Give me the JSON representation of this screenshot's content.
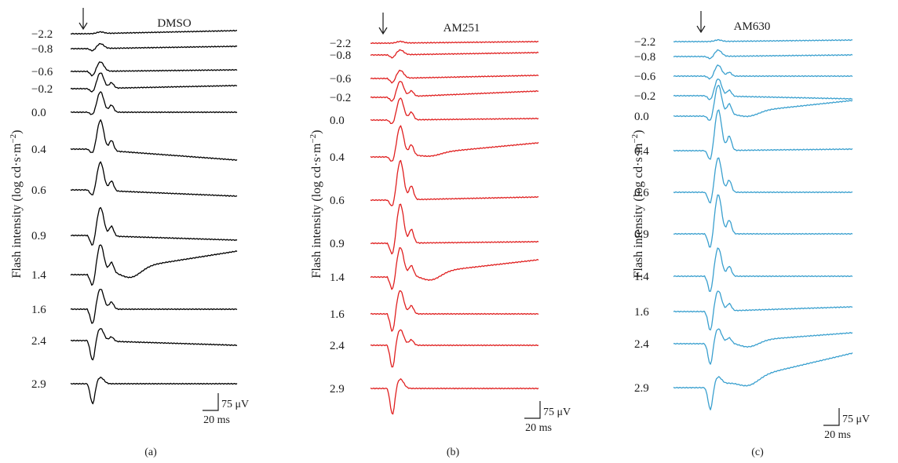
{
  "chart_data": [
    {
      "type": "line",
      "panel_label": "(a)",
      "title": "DMSO",
      "ylabel": "Flash intensity (log cd·s·m−2)",
      "ylabel_unit_exponent": "−2",
      "ylabel_prefix": "Flash intensity (log cd·s·m",
      "color": "#000000",
      "scale_bar": {
        "voltage": "75 μV",
        "time": "20 ms"
      },
      "flash_marker": "↓",
      "traces": [
        {
          "intensity": "−2.2",
          "a_wave": 0,
          "b_wave": 2,
          "trough": 0,
          "drift": 4
        },
        {
          "intensity": "−0.8",
          "a_wave": 3,
          "b_wave": 6,
          "trough": 0,
          "drift": 3
        },
        {
          "intensity": "−0.6",
          "a_wave": 6,
          "b_wave": 12,
          "trough": 0,
          "drift": 2
        },
        {
          "intensity": "−0.2",
          "a_wave": 5,
          "b_wave": 20,
          "trough": 0,
          "drift": 4
        },
        {
          "intensity": "0.0",
          "a_wave": 4,
          "b_wave": 26,
          "trough": 0,
          "drift": 0
        },
        {
          "intensity": "0.4",
          "a_wave": 6,
          "b_wave": 38,
          "trough": 0,
          "drift": -14
        },
        {
          "intensity": "0.6",
          "a_wave": 8,
          "b_wave": 36,
          "trough": 0,
          "drift": -8
        },
        {
          "intensity": "0.9",
          "a_wave": 14,
          "b_wave": 36,
          "trough": 0,
          "drift": -6
        },
        {
          "intensity": "1.4",
          "a_wave": 16,
          "b_wave": 36,
          "trough": 12,
          "drift": 30
        },
        {
          "intensity": "1.6",
          "a_wave": 20,
          "b_wave": 26,
          "trough": 0,
          "drift": 0
        },
        {
          "intensity": "2.4",
          "a_wave": 26,
          "b_wave": 16,
          "trough": 0,
          "drift": -6
        },
        {
          "intensity": "2.9",
          "a_wave": 26,
          "b_wave": 8,
          "trough": 0,
          "drift": 0
        }
      ]
    },
    {
      "type": "line",
      "panel_label": "(b)",
      "title": "AM251",
      "ylabel": "Flash intensity (log cd·s·m−2)",
      "ylabel_unit_exponent": "−2",
      "ylabel_prefix": "Flash intensity (log cd·s·m",
      "color": "#e02020",
      "scale_bar": {
        "voltage": "75 μV",
        "time": "20 ms"
      },
      "flash_marker": "↓",
      "traces": [
        {
          "intensity": "−2.2",
          "a_wave": 0,
          "b_wave": 2,
          "trough": 0,
          "drift": 2
        },
        {
          "intensity": "−0.8",
          "a_wave": 4,
          "b_wave": 6,
          "trough": 0,
          "drift": 3
        },
        {
          "intensity": "−0.6",
          "a_wave": 6,
          "b_wave": 10,
          "trough": 0,
          "drift": 4
        },
        {
          "intensity": "−0.2",
          "a_wave": 6,
          "b_wave": 20,
          "trough": 0,
          "drift": 8
        },
        {
          "intensity": "0.0",
          "a_wave": 6,
          "b_wave": 28,
          "trough": 0,
          "drift": 2
        },
        {
          "intensity": "0.4",
          "a_wave": 8,
          "b_wave": 38,
          "trough": 4,
          "drift": 18
        },
        {
          "intensity": "0.6",
          "a_wave": 10,
          "b_wave": 50,
          "trough": 0,
          "drift": 4
        },
        {
          "intensity": "0.9",
          "a_wave": 16,
          "b_wave": 50,
          "trough": 0,
          "drift": 2
        },
        {
          "intensity": "1.4",
          "a_wave": 18,
          "b_wave": 36,
          "trough": 10,
          "drift": 22
        },
        {
          "intensity": "1.6",
          "a_wave": 24,
          "b_wave": 30,
          "trough": 0,
          "drift": 0
        },
        {
          "intensity": "2.4",
          "a_wave": 30,
          "b_wave": 20,
          "trough": 0,
          "drift": 0
        },
        {
          "intensity": "2.9",
          "a_wave": 34,
          "b_wave": 12,
          "trough": 0,
          "drift": 0
        }
      ]
    },
    {
      "type": "line",
      "panel_label": "(c)",
      "title": "AM630",
      "ylabel": "Flash intensity (log cd·s·m−2)",
      "ylabel_unit_exponent": "−2",
      "ylabel_prefix": "Flash intensity (log cd·s·m",
      "color": "#3aa0cf",
      "scale_bar": {
        "voltage": "75 μV",
        "time": "20 ms"
      },
      "flash_marker": "↓",
      "traces": [
        {
          "intensity": "−2.2",
          "a_wave": 0,
          "b_wave": 2,
          "trough": 0,
          "drift": 2
        },
        {
          "intensity": "−0.8",
          "a_wave": 3,
          "b_wave": 8,
          "trough": 0,
          "drift": 2
        },
        {
          "intensity": "−0.6",
          "a_wave": 4,
          "b_wave": 14,
          "trough": 0,
          "drift": 0
        },
        {
          "intensity": "−0.2",
          "a_wave": 6,
          "b_wave": 22,
          "trough": 0,
          "drift": -4
        },
        {
          "intensity": "0.0",
          "a_wave": 8,
          "b_wave": 38,
          "trough": 6,
          "drift": 20
        },
        {
          "intensity": "0.4",
          "a_wave": 14,
          "b_wave": 52,
          "trough": 0,
          "drift": 2
        },
        {
          "intensity": "0.6",
          "a_wave": 16,
          "b_wave": 44,
          "trough": 0,
          "drift": 0
        },
        {
          "intensity": "0.9",
          "a_wave": 20,
          "b_wave": 50,
          "trough": 0,
          "drift": 0
        },
        {
          "intensity": "1.4",
          "a_wave": 22,
          "b_wave": 36,
          "trough": 0,
          "drift": 0
        },
        {
          "intensity": "1.6",
          "a_wave": 26,
          "b_wave": 26,
          "trough": 0,
          "drift": 6
        },
        {
          "intensity": "2.4",
          "a_wave": 28,
          "b_wave": 18,
          "trough": 8,
          "drift": 14
        },
        {
          "intensity": "2.9",
          "a_wave": 30,
          "b_wave": 10,
          "trough": 10,
          "drift": 44
        }
      ]
    }
  ]
}
